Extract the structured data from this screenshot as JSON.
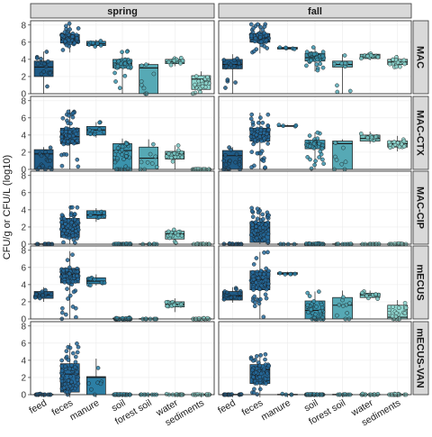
{
  "chart_data": {
    "type": "boxplot",
    "ylabel": "CFU/g or CFU/L (log10)",
    "xlabel": "",
    "ylim": [
      0,
      8.5
    ],
    "yticks": [
      0,
      2,
      4,
      6,
      8
    ],
    "columns": [
      "spring",
      "fall"
    ],
    "rows": [
      "MAC",
      "MAC-CTX",
      "MAC-CIP",
      "mECUS",
      "mECUS-VAN"
    ],
    "categories": [
      "feed",
      "feces",
      "manure",
      "soil",
      "forest soil",
      "water",
      "sediments"
    ],
    "colors": [
      "#1f5a85",
      "#24699a",
      "#2c7fa5",
      "#3a93ad",
      "#56a9b5",
      "#74c2c0",
      "#8ed6cf"
    ],
    "grid": true,
    "legend": "none",
    "panels": [
      {
        "row": "MAC",
        "column": "spring",
        "boxes": [
          {
            "category": "feed",
            "q1": 2.0,
            "median": 3.1,
            "q3": 3.8,
            "whisker_low": 0,
            "whisker_high": 4.9,
            "n": 16
          },
          {
            "category": "feces",
            "q1": 5.9,
            "median": 6.3,
            "q3": 6.9,
            "whisker_low": 4.8,
            "whisker_high": 8.2,
            "n": 70
          },
          {
            "category": "manure",
            "q1": 5.6,
            "median": 5.8,
            "q3": 6.1,
            "whisker_low": 5.4,
            "whisker_high": 6.3,
            "n": 9
          },
          {
            "category": "soil",
            "q1": 3.0,
            "median": 3.5,
            "q3": 4.0,
            "whisker_low": 0,
            "whisker_high": 5.0,
            "n": 35
          },
          {
            "category": "forest soil",
            "q1": 0,
            "median": 3.0,
            "q3": 3.4,
            "whisker_low": 0,
            "whisker_high": 3.6,
            "n": 8
          },
          {
            "category": "water",
            "q1": 3.5,
            "median": 3.7,
            "q3": 4.0,
            "whisker_low": 3.2,
            "whisker_high": 4.3,
            "n": 14
          },
          {
            "category": "sediments",
            "q1": 0.5,
            "median": 1.7,
            "q3": 2.1,
            "whisker_low": 0,
            "whisker_high": 2.6,
            "n": 22
          }
        ]
      },
      {
        "row": "MAC",
        "column": "fall",
        "boxes": [
          {
            "category": "feed",
            "q1": 2.9,
            "median": 3.4,
            "q3": 4.0,
            "whisker_low": 0,
            "whisker_high": 4.6,
            "n": 18
          },
          {
            "category": "feces",
            "q1": 6.0,
            "median": 6.5,
            "q3": 7.0,
            "whisker_low": 4.7,
            "whisker_high": 8.2,
            "n": 75
          },
          {
            "category": "manure",
            "q1": 5.2,
            "median": 5.3,
            "q3": 5.4,
            "whisker_low": 5.1,
            "whisker_high": 5.5,
            "n": 5
          },
          {
            "category": "soil",
            "q1": 3.8,
            "median": 4.2,
            "q3": 4.7,
            "whisker_low": 2.6,
            "whisker_high": 5.5,
            "n": 40
          },
          {
            "category": "forest soil",
            "q1": 3.1,
            "median": 3.4,
            "q3": 3.8,
            "whisker_low": 0,
            "whisker_high": 4.6,
            "n": 10
          },
          {
            "category": "water",
            "q1": 4.1,
            "median": 4.3,
            "q3": 4.6,
            "whisker_low": 3.9,
            "whisker_high": 4.8,
            "n": 13
          },
          {
            "category": "sediments",
            "q1": 3.4,
            "median": 3.7,
            "q3": 4.0,
            "whisker_low": 3.1,
            "whisker_high": 4.5,
            "n": 18
          }
        ]
      },
      {
        "row": "MAC-CTX",
        "column": "spring",
        "boxes": [
          {
            "category": "feed",
            "q1": 0,
            "median": 1.8,
            "q3": 2.3,
            "whisker_low": 0,
            "whisker_high": 2.6,
            "n": 16
          },
          {
            "category": "feces",
            "q1": 3.0,
            "median": 3.8,
            "q3": 4.8,
            "whisker_low": 0,
            "whisker_high": 7.0,
            "n": 70
          },
          {
            "category": "manure",
            "q1": 4.0,
            "median": 4.6,
            "q3": 5.0,
            "whisker_low": 3.7,
            "whisker_high": 5.5,
            "n": 9
          },
          {
            "category": "soil",
            "q1": 0,
            "median": 2.2,
            "q3": 3.0,
            "whisker_low": 0,
            "whisker_high": 3.6,
            "n": 35
          },
          {
            "category": "forest soil",
            "q1": 0,
            "median": 1.3,
            "q3": 2.6,
            "whisker_low": 0,
            "whisker_high": 3.5,
            "n": 9
          },
          {
            "category": "water",
            "q1": 1.2,
            "median": 1.8,
            "q3": 2.1,
            "whisker_low": 0,
            "whisker_high": 2.8,
            "n": 14
          },
          {
            "category": "sediments",
            "q1": 0,
            "median": 0,
            "q3": 0.05,
            "whisker_low": 0,
            "whisker_high": 0.1,
            "n": 22
          }
        ]
      },
      {
        "row": "MAC-CTX",
        "column": "fall",
        "boxes": [
          {
            "category": "feed",
            "q1": 0,
            "median": 1.6,
            "q3": 2.2,
            "whisker_low": 0,
            "whisker_high": 2.6,
            "n": 18
          },
          {
            "category": "feces",
            "q1": 3.3,
            "median": 4.0,
            "q3": 4.8,
            "whisker_low": 0,
            "whisker_high": 6.6,
            "n": 75
          },
          {
            "category": "manure",
            "q1": 5.0,
            "median": 5.05,
            "q3": 5.1,
            "whisker_low": 5.0,
            "whisker_high": 5.2,
            "n": 4
          },
          {
            "category": "soil",
            "q1": 2.4,
            "median": 2.9,
            "q3": 3.4,
            "whisker_low": 0,
            "whisker_high": 4.3,
            "n": 40
          },
          {
            "category": "forest soil",
            "q1": 0,
            "median": 3.0,
            "q3": 3.3,
            "whisker_low": 0,
            "whisker_high": 3.5,
            "n": 9
          },
          {
            "category": "water",
            "q1": 3.3,
            "median": 3.6,
            "q3": 4.0,
            "whisker_low": 3.0,
            "whisker_high": 4.4,
            "n": 14
          },
          {
            "category": "sediments",
            "q1": 2.6,
            "median": 3.0,
            "q3": 3.3,
            "whisker_low": 2.1,
            "whisker_high": 3.9,
            "n": 20
          }
        ]
      },
      {
        "row": "MAC-CIP",
        "column": "spring",
        "boxes": [
          {
            "category": "feed",
            "q1": 0,
            "median": 0,
            "q3": 0.05,
            "whisker_low": 0,
            "whisker_high": 0.1,
            "n": 14
          },
          {
            "category": "feces",
            "q1": 0.8,
            "median": 2.1,
            "q3": 3.0,
            "whisker_low": 0,
            "whisker_high": 4.5,
            "n": 70
          },
          {
            "category": "manure",
            "q1": 3.0,
            "median": 3.4,
            "q3": 3.9,
            "whisker_low": 2.6,
            "whisker_high": 4.2,
            "n": 8
          },
          {
            "category": "soil",
            "q1": 0,
            "median": 0,
            "q3": 0.05,
            "whisker_low": 0,
            "whisker_high": 0.1,
            "n": 35
          },
          {
            "category": "forest soil",
            "q1": 0,
            "median": 0,
            "q3": 0.05,
            "whisker_low": 0,
            "whisker_high": 0.1,
            "n": 8
          },
          {
            "category": "water",
            "q1": 0.6,
            "median": 1.2,
            "q3": 1.5,
            "whisker_low": 0,
            "whisker_high": 1.9,
            "n": 14
          },
          {
            "category": "sediments",
            "q1": 0,
            "median": 0,
            "q3": 0.05,
            "whisker_low": 0,
            "whisker_high": 0.1,
            "n": 18
          }
        ]
      },
      {
        "row": "MAC-CIP",
        "column": "fall",
        "boxes": [
          {
            "category": "feed",
            "q1": 0,
            "median": 0,
            "q3": 0.05,
            "whisker_low": 0,
            "whisker_high": 0.1,
            "n": 14
          },
          {
            "category": "feces",
            "q1": 0.2,
            "median": 1.9,
            "q3": 2.6,
            "whisker_low": 0,
            "whisker_high": 4.3,
            "n": 75
          },
          {
            "category": "manure",
            "q1": 0,
            "median": 0,
            "q3": 0.05,
            "whisker_low": 0,
            "whisker_high": 0.1,
            "n": 4
          },
          {
            "category": "soil",
            "q1": 0,
            "median": 0,
            "q3": 0.05,
            "whisker_low": 0,
            "whisker_high": 0.1,
            "n": 40
          },
          {
            "category": "forest soil",
            "q1": 0,
            "median": 0,
            "q3": 0.05,
            "whisker_low": 0,
            "whisker_high": 0.1,
            "n": 9
          },
          {
            "category": "water",
            "q1": 0,
            "median": 0,
            "q3": 0.05,
            "whisker_low": 0,
            "whisker_high": 0.1,
            "n": 14
          },
          {
            "category": "sediments",
            "q1": 0,
            "median": 0,
            "q3": 0.05,
            "whisker_low": 0,
            "whisker_high": 0.1,
            "n": 20
          }
        ]
      },
      {
        "row": "mECUS",
        "column": "spring",
        "boxes": [
          {
            "category": "feed",
            "q1": 2.4,
            "median": 2.8,
            "q3": 3.2,
            "whisker_low": 2.0,
            "whisker_high": 3.7,
            "n": 14
          },
          {
            "category": "feces",
            "q1": 4.2,
            "median": 5.2,
            "q3": 5.9,
            "whisker_low": 0,
            "whisker_high": 7.9,
            "n": 70
          },
          {
            "category": "manure",
            "q1": 4.1,
            "median": 4.4,
            "q3": 4.8,
            "whisker_low": 3.9,
            "whisker_high": 5.2,
            "n": 9
          },
          {
            "category": "soil",
            "q1": 0,
            "median": 0,
            "q3": 0.1,
            "whisker_low": 0,
            "whisker_high": 0.2,
            "n": 35
          },
          {
            "category": "forest soil",
            "q1": 0,
            "median": 0,
            "q3": 0.05,
            "whisker_low": 0,
            "whisker_high": 0.1,
            "n": 8
          },
          {
            "category": "water",
            "q1": 1.4,
            "median": 1.7,
            "q3": 2.0,
            "whisker_low": 0.8,
            "whisker_high": 2.4,
            "n": 14
          },
          {
            "category": "sediments",
            "q1": 0,
            "median": 0,
            "q3": 0.05,
            "whisker_low": 0,
            "whisker_high": 0.1,
            "n": 18
          }
        ]
      },
      {
        "row": "mECUS",
        "column": "fall",
        "boxes": [
          {
            "category": "feed",
            "q1": 2.2,
            "median": 2.7,
            "q3": 3.2,
            "whisker_low": 1.9,
            "whisker_high": 3.7,
            "n": 16
          },
          {
            "category": "feces",
            "q1": 3.4,
            "median": 4.6,
            "q3": 5.6,
            "whisker_low": 0,
            "whisker_high": 7.8,
            "n": 75
          },
          {
            "category": "manure",
            "q1": 5.2,
            "median": 5.3,
            "q3": 5.4,
            "whisker_low": 5.1,
            "whisker_high": 5.5,
            "n": 5
          },
          {
            "category": "soil",
            "q1": 0,
            "median": 1.0,
            "q3": 2.1,
            "whisker_low": 0,
            "whisker_high": 3.2,
            "n": 40
          },
          {
            "category": "forest soil",
            "q1": 0,
            "median": 1.6,
            "q3": 2.5,
            "whisker_low": 0,
            "whisker_high": 3.3,
            "n": 10
          },
          {
            "category": "water",
            "q1": 2.5,
            "median": 2.8,
            "q3": 3.0,
            "whisker_low": 2.3,
            "whisker_high": 3.3,
            "n": 12
          },
          {
            "category": "sediments",
            "q1": 0,
            "median": 0.2,
            "q3": 1.6,
            "whisker_low": 0,
            "whisker_high": 2.2,
            "n": 20
          }
        ]
      },
      {
        "row": "mECUS-VAN",
        "column": "spring",
        "boxes": [
          {
            "category": "feed",
            "q1": 0,
            "median": 0,
            "q3": 0.05,
            "whisker_low": 0,
            "whisker_high": 0.1,
            "n": 14
          },
          {
            "category": "feces",
            "q1": 0.3,
            "median": 2.4,
            "q3": 3.6,
            "whisker_low": 0,
            "whisker_high": 6.0,
            "n": 70
          },
          {
            "category": "manure",
            "q1": 0,
            "median": 2.0,
            "q3": 2.1,
            "whisker_low": 0,
            "whisker_high": 4.2,
            "n": 7
          },
          {
            "category": "soil",
            "q1": 0,
            "median": 0,
            "q3": 0.05,
            "whisker_low": 0,
            "whisker_high": 0.1,
            "n": 35
          },
          {
            "category": "forest soil",
            "q1": 0,
            "median": 0,
            "q3": 0.05,
            "whisker_low": 0,
            "whisker_high": 0.1,
            "n": 8
          },
          {
            "category": "water",
            "q1": 0,
            "median": 0,
            "q3": 0.05,
            "whisker_low": 0,
            "whisker_high": 0.1,
            "n": 14
          },
          {
            "category": "sediments",
            "q1": 0,
            "median": 0,
            "q3": 0.05,
            "whisker_low": 0,
            "whisker_high": 0.1,
            "n": 18
          }
        ]
      },
      {
        "row": "mECUS-VAN",
        "column": "fall",
        "boxes": [
          {
            "category": "feed",
            "q1": 0,
            "median": 0,
            "q3": 0.05,
            "whisker_low": 0,
            "whisker_high": 0.1,
            "n": 16
          },
          {
            "category": "feces",
            "q1": 1.3,
            "median": 2.9,
            "q3": 3.5,
            "whisker_low": 0,
            "whisker_high": 4.7,
            "n": 75
          },
          {
            "category": "manure",
            "q1": 0,
            "median": 0,
            "q3": 0.05,
            "whisker_low": 0,
            "whisker_high": 0.1,
            "n": 4
          },
          {
            "category": "soil",
            "q1": 0,
            "median": 0,
            "q3": 0.05,
            "whisker_low": 0,
            "whisker_high": 0.1,
            "n": 40
          },
          {
            "category": "forest soil",
            "q1": 0,
            "median": 0,
            "q3": 0.05,
            "whisker_low": 0,
            "whisker_high": 0.1,
            "n": 10
          },
          {
            "category": "water",
            "q1": 0,
            "median": 0,
            "q3": 0.05,
            "whisker_low": 0,
            "whisker_high": 0.1,
            "n": 14
          },
          {
            "category": "sediments",
            "q1": 0,
            "median": 0,
            "q3": 0.05,
            "whisker_low": 0,
            "whisker_high": 0.1,
            "n": 20
          }
        ]
      }
    ]
  }
}
